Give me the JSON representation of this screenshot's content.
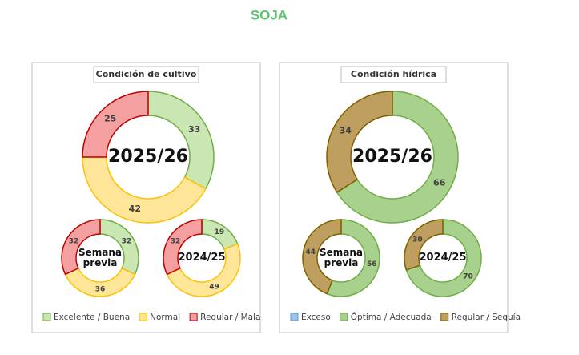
{
  "title": "SOJA",
  "chart_data": [
    {
      "type": "donut",
      "title": "Condición de cultivo",
      "categories": [
        "Excelente / Buena",
        "Normal",
        "Regular / Mala"
      ],
      "colors": [
        "#c9e6b3",
        "#ffe699",
        "#f4a0a0"
      ],
      "edge_colors": [
        "#70ad47",
        "#ffc000",
        "#c00000"
      ],
      "series": [
        {
          "name": "2025/26",
          "values": [
            33,
            42,
            25
          ]
        },
        {
          "name": "Semana previa",
          "values": [
            32,
            36,
            32
          ]
        },
        {
          "name": "2024/25",
          "values": [
            19,
            49,
            32
          ]
        }
      ]
    },
    {
      "type": "donut",
      "title": "Condición hídrica",
      "categories": [
        "Exceso",
        "Óptima / Adecuada",
        "Regular / Sequía"
      ],
      "colors": [
        "#9dc3e6",
        "#a9d18e",
        "#bf9f5f"
      ],
      "edge_colors": [
        "#5b9bd5",
        "#70ad47",
        "#7f6000"
      ],
      "series": [
        {
          "name": "2025/26",
          "values": [
            0,
            66,
            34
          ]
        },
        {
          "name": "Semana previa",
          "values": [
            0,
            56,
            44
          ]
        },
        {
          "name": "2024/25",
          "values": [
            0,
            70,
            30
          ]
        }
      ]
    }
  ]
}
